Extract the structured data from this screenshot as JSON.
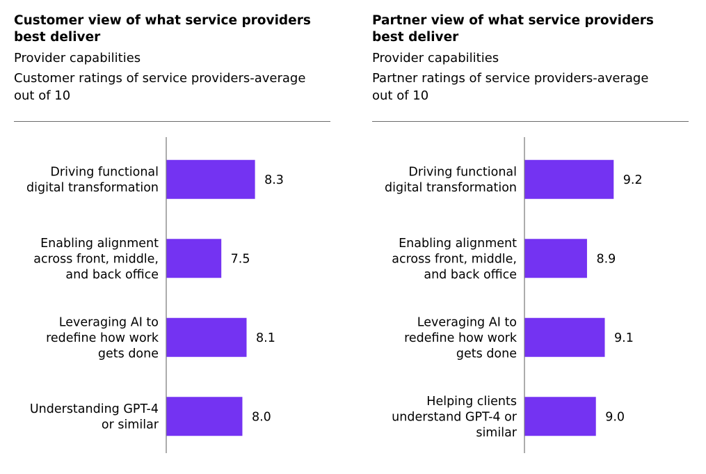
{
  "chart_data": [
    {
      "type": "bar",
      "orientation": "horizontal",
      "title": "Customer view of what service providers\nbest deliver",
      "subtitle": "Provider capabilities",
      "note": "Customer ratings of service providers-average\nout of 10",
      "categories": [
        "Driving functional\ndigital transformation",
        "Enabling alignment\nacross front, middle,\nand back office",
        "Leveraging AI to\nredefine how work\ngets done",
        "Understanding GPT-4\nor similar"
      ],
      "values": [
        8.3,
        7.5,
        8.1,
        8.0
      ],
      "value_labels": [
        "8.3",
        "7.5",
        "8.1",
        "8.0"
      ],
      "xlim": [
        6.2,
        10
      ],
      "bar_color": "#7433F2",
      "axis_color": "#7f7f7f",
      "grid": false,
      "legend": "none"
    },
    {
      "type": "bar",
      "orientation": "horizontal",
      "title": "Partner view of what service providers\nbest deliver",
      "subtitle": "Provider capabilities",
      "note": "Partner ratings of service providers-average\nout of 10",
      "categories": [
        "Driving functional\ndigital transformation",
        "Enabling alignment\nacross front, middle,\nand back office",
        "Leveraging AI to\nredefine how work\ngets done",
        "Helping clients\nunderstand GPT-4 or\nsimilar"
      ],
      "values": [
        9.2,
        8.9,
        9.1,
        9.0
      ],
      "value_labels": [
        "9.2",
        "8.9",
        "9.1",
        "9.0"
      ],
      "xlim": [
        8.2,
        10
      ],
      "bar_color": "#7433F2",
      "axis_color": "#7f7f7f",
      "grid": false,
      "legend": "none"
    }
  ]
}
